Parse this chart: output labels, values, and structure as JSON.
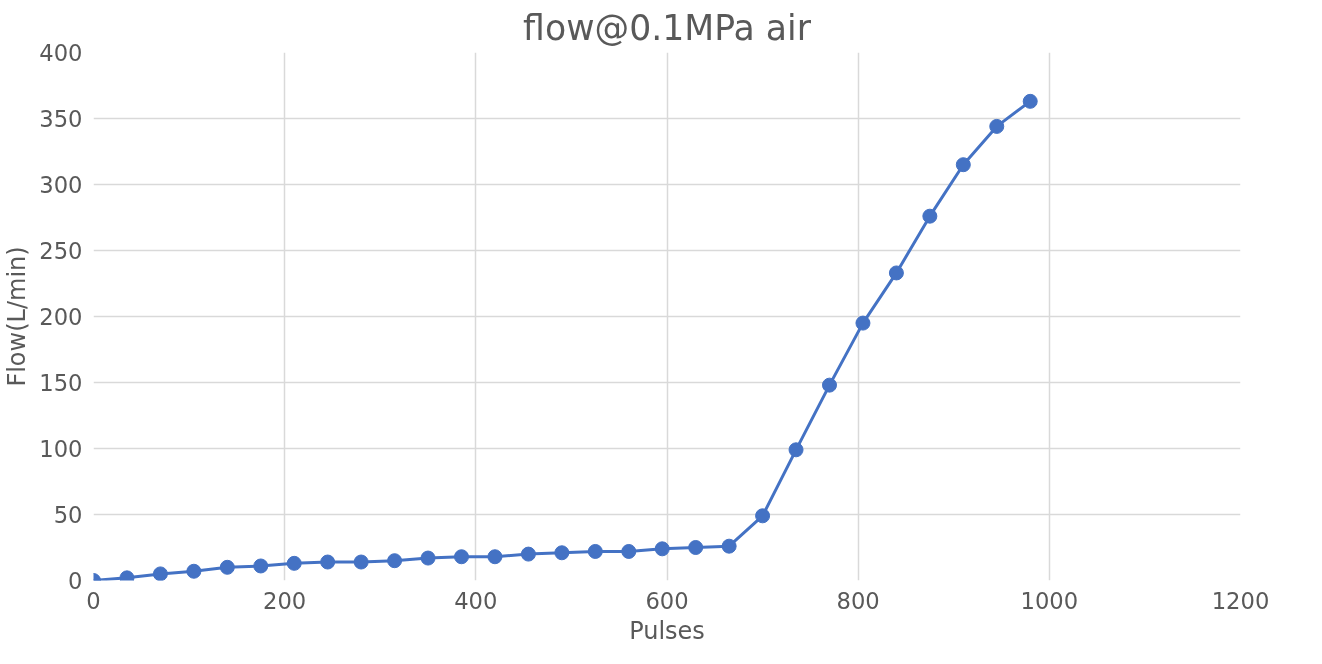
{
  "chart_data": {
    "type": "line",
    "title": "flow@0.1MPa air",
    "xlabel": "Pulses",
    "ylabel": "Flow(L/min)",
    "x": [
      0,
      35,
      70,
      105,
      140,
      175,
      210,
      245,
      280,
      315,
      350,
      385,
      420,
      455,
      490,
      525,
      560,
      595,
      630,
      665,
      700,
      735,
      770,
      805,
      840,
      875,
      910,
      945,
      980
    ],
    "series": [
      {
        "color": "#4472c4",
        "values": [
          0,
          2,
          5,
          7,
          10,
          11,
          13,
          14,
          14,
          15,
          17,
          18,
          18,
          20,
          21,
          22,
          22,
          24,
          25,
          26,
          49,
          99,
          148,
          195,
          233,
          276,
          315,
          344,
          363
        ]
      }
    ],
    "xlim": [
      0,
      1200
    ],
    "xticks": [
      0,
      200,
      400,
      600,
      800,
      1000,
      1200
    ],
    "ylim": [
      0,
      400
    ],
    "yticks": [
      0,
      50,
      100,
      150,
      200,
      250,
      300,
      350,
      400
    ],
    "grid": true,
    "marker": "circle",
    "line_style": "solid"
  }
}
